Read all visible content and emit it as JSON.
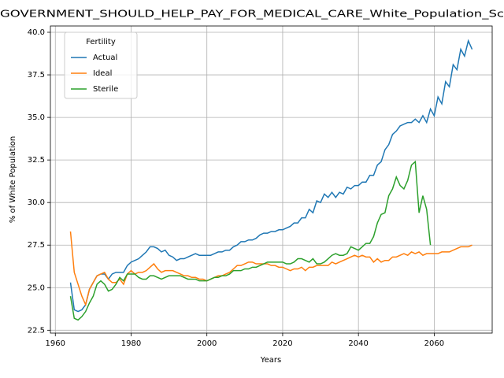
{
  "chart_data": {
    "type": "line",
    "title": "GOVERNMENT_SHOULD_HELP_PAY_FOR_MEDICAL_CARE_White_Population_Sc",
    "xlabel": "Years",
    "ylabel": "% of White Population",
    "legend_title": "Fertility",
    "legend": "upper left",
    "grid": true,
    "x": [
      1964,
      1965,
      1966,
      1967,
      1968,
      1969,
      1970,
      1971,
      1972,
      1973,
      1974,
      1975,
      1976,
      1977,
      1978,
      1979,
      1980,
      1981,
      1982,
      1983,
      1984,
      1985,
      1986,
      1987,
      1988,
      1989,
      1990,
      1991,
      1992,
      1993,
      1994,
      1995,
      1996,
      1997,
      1998,
      1999,
      2000,
      2001,
      2002,
      2003,
      2004,
      2005,
      2006,
      2007,
      2008,
      2009,
      2010,
      2011,
      2012,
      2013,
      2014,
      2015,
      2016,
      2017,
      2018,
      2019,
      2020,
      2021,
      2022,
      2023,
      2024,
      2025,
      2026,
      2027,
      2028,
      2029,
      2030,
      2031,
      2032,
      2033,
      2034,
      2035,
      2036,
      2037,
      2038,
      2039,
      2040,
      2041,
      2042,
      2043,
      2044,
      2045,
      2046,
      2047,
      2048,
      2049,
      2050,
      2051,
      2052,
      2053,
      2054,
      2055,
      2056,
      2057,
      2058,
      2059,
      2060,
      2061,
      2062,
      2063,
      2064,
      2065,
      2066,
      2067,
      2068,
      2069,
      2070
    ],
    "series": [
      {
        "name": "Actual",
        "color": "#1f77b4",
        "values": [
          25.3,
          23.7,
          23.6,
          23.7,
          24.0,
          24.9,
          25.3,
          25.7,
          25.8,
          25.8,
          25.5,
          25.8,
          25.9,
          25.9,
          25.9,
          26.3,
          26.5,
          26.6,
          26.7,
          26.9,
          27.1,
          27.4,
          27.4,
          27.3,
          27.1,
          27.2,
          26.9,
          26.8,
          26.6,
          26.7,
          26.7,
          26.8,
          26.9,
          27.0,
          26.9,
          26.9,
          26.9,
          26.9,
          27.0,
          27.1,
          27.1,
          27.2,
          27.2,
          27.4,
          27.5,
          27.7,
          27.7,
          27.8,
          27.8,
          27.9,
          28.1,
          28.2,
          28.2,
          28.3,
          28.3,
          28.4,
          28.4,
          28.5,
          28.6,
          28.8,
          28.8,
          29.1,
          29.1,
          29.6,
          29.4,
          30.1,
          30.0,
          30.5,
          30.3,
          30.6,
          30.3,
          30.6,
          30.5,
          30.9,
          30.8,
          31.0,
          31.0,
          31.2,
          31.2,
          31.6,
          31.6,
          32.2,
          32.4,
          33.1,
          33.4,
          34.0,
          34.2,
          34.5,
          34.6,
          34.7,
          34.7,
          34.9,
          34.7,
          35.1,
          34.7,
          35.5,
          35.1,
          36.2,
          35.8,
          37.1,
          36.8,
          38.1,
          37.8,
          39.0,
          38.6,
          39.5,
          39.0
        ]
      },
      {
        "name": "Ideal",
        "color": "#ff7f0e",
        "values": [
          28.3,
          25.9,
          25.2,
          24.5,
          24.0,
          24.9,
          25.3,
          25.7,
          25.8,
          25.9,
          25.5,
          25.3,
          25.3,
          25.5,
          25.2,
          25.8,
          26.0,
          25.8,
          25.9,
          25.9,
          26.0,
          26.2,
          26.4,
          26.1,
          25.9,
          26.0,
          26.0,
          26.0,
          25.9,
          25.8,
          25.7,
          25.7,
          25.6,
          25.6,
          25.5,
          25.5,
          25.4,
          25.5,
          25.6,
          25.7,
          25.7,
          25.8,
          25.9,
          26.1,
          26.3,
          26.3,
          26.4,
          26.5,
          26.5,
          26.4,
          26.4,
          26.4,
          26.4,
          26.3,
          26.3,
          26.2,
          26.2,
          26.1,
          26.0,
          26.1,
          26.1,
          26.2,
          26.0,
          26.2,
          26.2,
          26.3,
          26.3,
          26.3,
          26.3,
          26.5,
          26.4,
          26.5,
          26.6,
          26.7,
          26.8,
          26.9,
          26.8,
          26.9,
          26.8,
          26.8,
          26.5,
          26.7,
          26.5,
          26.6,
          26.6,
          26.8,
          26.8,
          26.9,
          27.0,
          26.9,
          27.1,
          27.0,
          27.1,
          26.9,
          27.0,
          27.0,
          27.0,
          27.0,
          27.1,
          27.1,
          27.1,
          27.2,
          27.3,
          27.4,
          27.4,
          27.4,
          27.5
        ]
      },
      {
        "name": "Sterile",
        "color": "#2ca02c",
        "values": [
          24.5,
          23.2,
          23.1,
          23.3,
          23.6,
          24.1,
          24.5,
          25.2,
          25.4,
          25.2,
          24.8,
          24.9,
          25.2,
          25.6,
          25.4,
          25.8,
          25.8,
          25.8,
          25.6,
          25.5,
          25.5,
          25.7,
          25.7,
          25.6,
          25.5,
          25.6,
          25.7,
          25.7,
          25.7,
          25.7,
          25.6,
          25.5,
          25.5,
          25.5,
          25.4,
          25.4,
          25.4,
          25.5,
          25.6,
          25.6,
          25.7,
          25.7,
          25.8,
          26.0,
          26.0,
          26.0,
          26.1,
          26.1,
          26.2,
          26.2,
          26.3,
          26.4,
          26.5,
          26.5,
          26.5,
          26.5,
          26.5,
          26.4,
          26.4,
          26.5,
          26.7,
          26.7,
          26.6,
          26.5,
          26.7,
          26.4,
          26.4,
          26.5,
          26.7,
          26.9,
          27.0,
          26.9,
          26.9,
          27.0,
          27.4,
          27.3,
          27.2,
          27.4,
          27.6,
          27.6,
          28.0,
          28.8,
          29.3,
          29.4,
          30.4,
          30.8,
          31.5,
          31.0,
          30.8,
          31.3,
          32.2,
          32.4,
          29.4,
          30.4,
          29.6,
          27.5,
          null,
          null,
          null,
          null,
          null,
          null,
          null,
          null,
          null,
          null,
          null
        ]
      }
    ],
    "xlim": [
      1958.7,
      2075.3
    ],
    "ylim": [
      22.33,
      40.37
    ],
    "xticks": [
      1960,
      1980,
      2000,
      2020,
      2040,
      2060
    ],
    "yticks": [
      22.5,
      {
        "value": 25,
        "label": "25.0"
      },
      27.5,
      {
        "value": 30,
        "label": "30.0"
      },
      32.5,
      {
        "value": 35,
        "label": "35.0"
      },
      37.5,
      {
        "value": 40,
        "label": "40.0"
      }
    ]
  }
}
